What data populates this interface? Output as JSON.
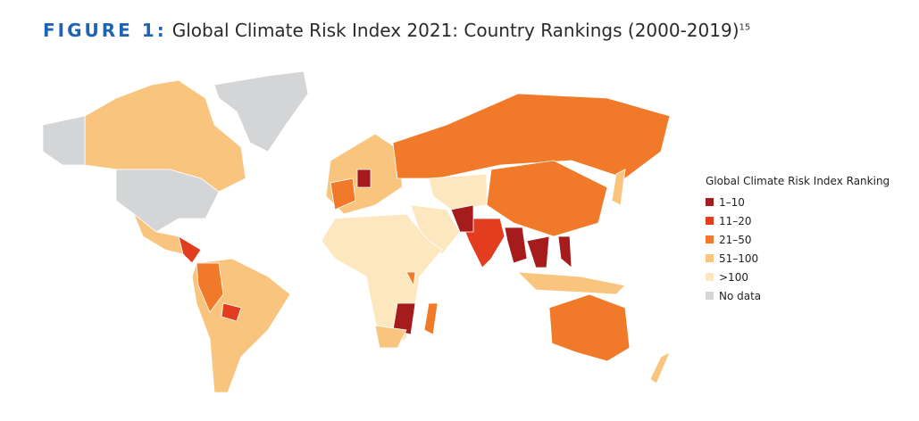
{
  "header": {
    "label": "FIGURE 1:",
    "title": "Global Climate Risk Index 2021: Country Rankings (2000-2019)",
    "footnote": "15"
  },
  "legend": {
    "title": "Global Climate Risk Index Ranking",
    "items": [
      {
        "label": "1–10",
        "color": "#a61c1c"
      },
      {
        "label": "11–20",
        "color": "#e23d1e"
      },
      {
        "label": "21–50",
        "color": "#f07a2a"
      },
      {
        "label": "51–100",
        "color": "#f9c57e"
      },
      {
        "label": ">100",
        "color": "#fde7bf"
      },
      {
        "label": "No data",
        "color": "#d3d5d6"
      }
    ]
  }
}
